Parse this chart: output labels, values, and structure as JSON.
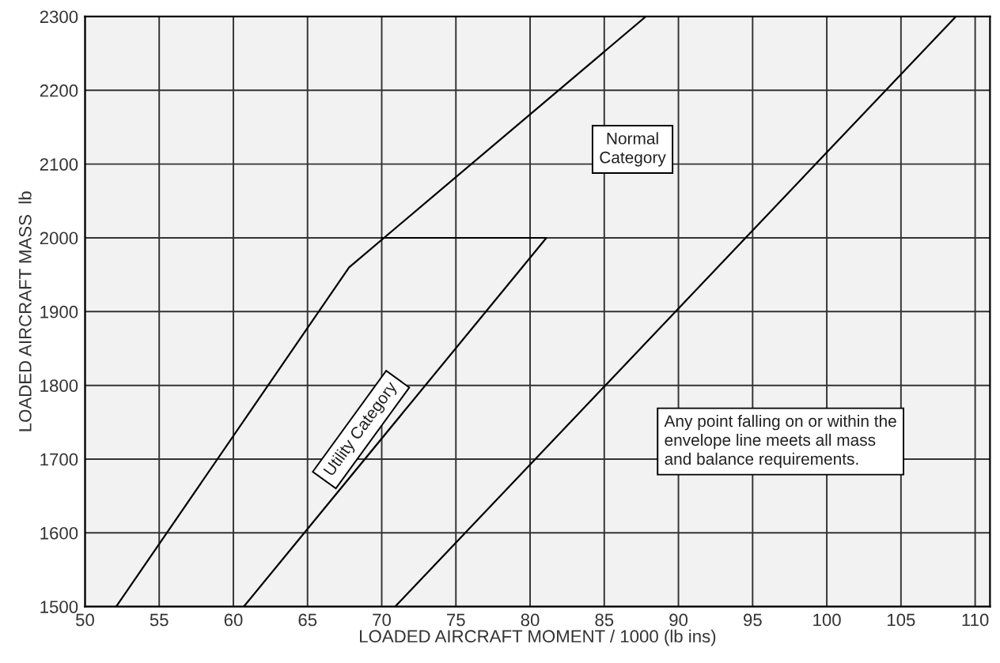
{
  "chart_data": {
    "type": "line",
    "xlabel": "LOADED AIRCRAFT MOMENT / 1000 (lb ins)",
    "ylabel": "LOADED AIRCRAFT MASS  lb",
    "series": [
      {
        "color": "#000000",
        "x": [
          52.1,
          67.8,
          87.8,
          108.7,
          70.9
        ],
        "values": [
          1500,
          1960,
          2300,
          2300,
          1500
        ]
      },
      {
        "color": "#000000",
        "x": [
          70.0,
          81.1,
          60.7
        ],
        "values": [
          2000,
          2000,
          1500
        ]
      }
    ],
    "xlim": [
      50,
      111
    ],
    "xticks": [
      50,
      55,
      60,
      65,
      70,
      75,
      80,
      85,
      90,
      95,
      100,
      105,
      110
    ],
    "ylim": [
      1500,
      2300
    ],
    "yticks": [
      1500,
      1600,
      1700,
      1800,
      1900,
      2000,
      2100,
      2200,
      2300
    ],
    "grid": true,
    "marker": "none",
    "line_style": "solid",
    "annotations": [
      "Normal\nCategory",
      "Utility Category",
      "Any point falling on or within the\nenvelope line meets all mass\nand balance requirements."
    ]
  }
}
